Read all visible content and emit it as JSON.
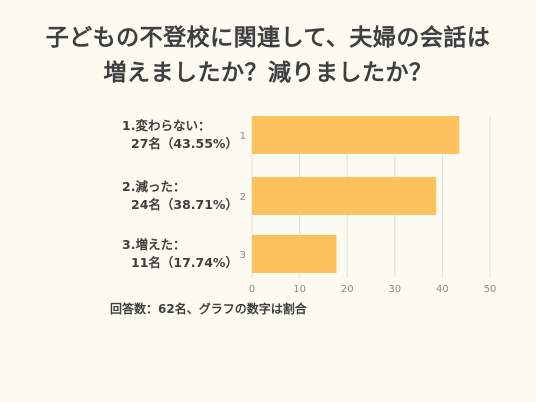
{
  "title_line1": "子どもの不登校に関連して、夫婦の会話は",
  "title_line2": "増えましたか？減りましたか？",
  "footnote": "回答数：62名、グラフの数字は割合",
  "colors": {
    "bar": "#fdc25e",
    "grid": "#e2e0d6",
    "background": "#fcfbf1"
  },
  "chart_data": {
    "type": "bar",
    "orientation": "horizontal",
    "categories": [
      "1",
      "2",
      "3"
    ],
    "category_labels": [
      [
        "1.変わらない：",
        "27名（43.55%）"
      ],
      [
        "2.減った：",
        "24名（38.71%）"
      ],
      [
        "3.増えた：",
        "11名（17.74%）"
      ]
    ],
    "values": [
      43.55,
      38.71,
      17.74
    ],
    "xlim": [
      0,
      50
    ],
    "xticks": [
      0,
      10,
      20,
      30,
      40,
      50
    ],
    "grid": true
  }
}
